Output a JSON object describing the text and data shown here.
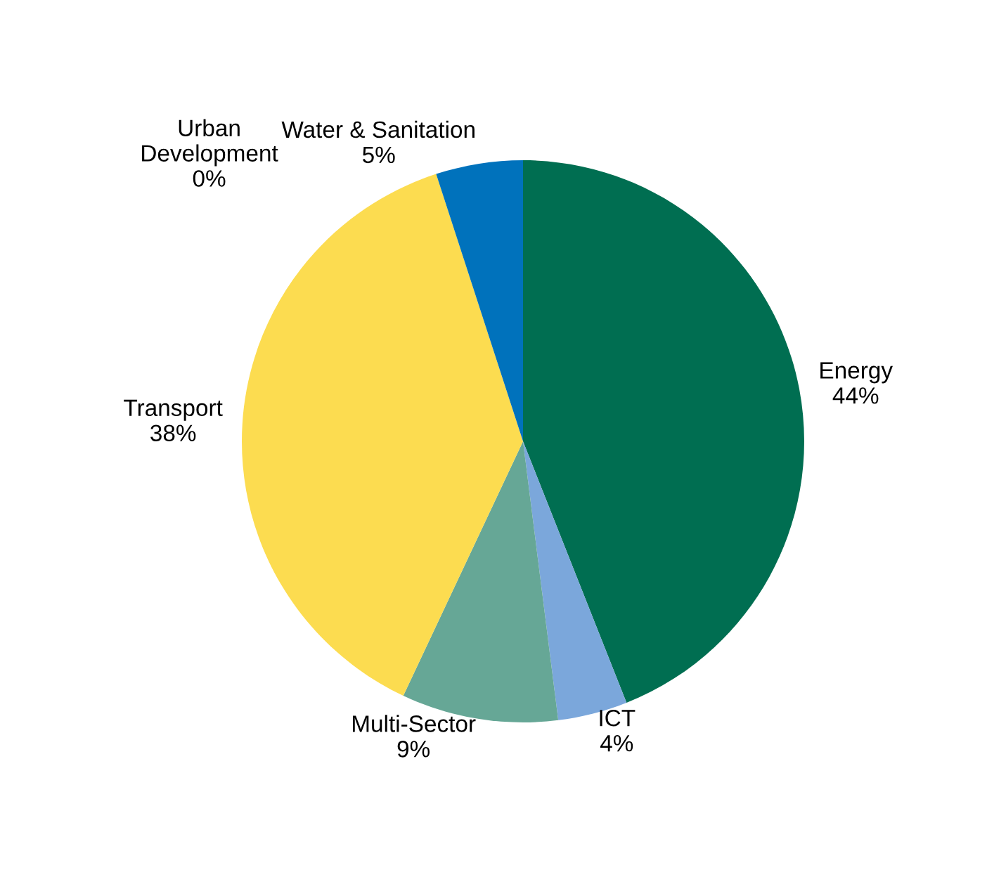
{
  "chart_data": {
    "type": "pie",
    "categories": [
      "Energy",
      "ICT",
      "Multi-Sector",
      "Transport",
      "Urban Development",
      "Water & Sanitation"
    ],
    "values": [
      44,
      4,
      9,
      38,
      0,
      5
    ],
    "value_labels": [
      "44%",
      "4%",
      "9%",
      "38%",
      "0%",
      "5%"
    ],
    "colors": [
      "#006e51",
      "#7ba7db",
      "#66a796",
      "#fcdc50",
      "#1f3d7a",
      "#0072bc"
    ]
  }
}
